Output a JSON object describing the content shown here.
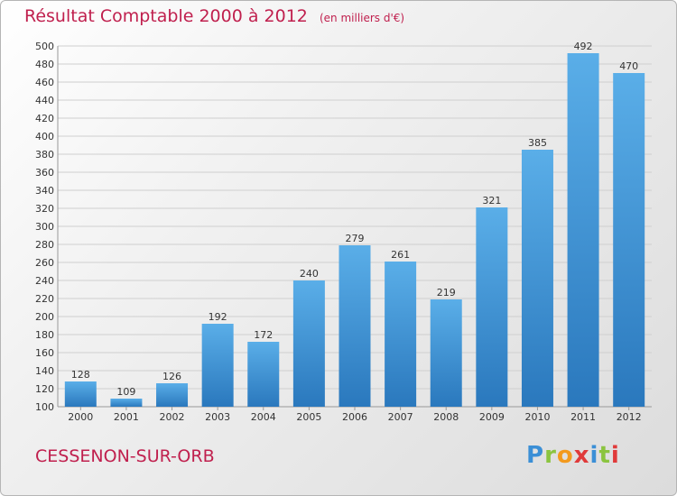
{
  "header": {
    "title": "Résultat Comptable 2000 à 2012",
    "unit": "(en milliers d'€)"
  },
  "footer": {
    "commune": "CESSENON-SUR-ORB",
    "logo": "Proxiti"
  },
  "colors": {
    "title": "#c0204e",
    "bar_light": "#5aaee8",
    "bar_dark": "#2a78bd",
    "grid": "#cfcfcf"
  },
  "chart_data": {
    "type": "bar",
    "title": "Résultat Comptable 2000 à 2012",
    "subtitle": "(en milliers d'€)",
    "categories": [
      "2000",
      "2001",
      "2002",
      "2003",
      "2004",
      "2005",
      "2006",
      "2007",
      "2008",
      "2009",
      "2010",
      "2011",
      "2012"
    ],
    "values": [
      128,
      109,
      126,
      192,
      172,
      240,
      279,
      261,
      219,
      321,
      385,
      492,
      470
    ],
    "ylim": [
      100,
      500
    ],
    "ytick_step": 20,
    "grid": true,
    "data_labels": true
  }
}
